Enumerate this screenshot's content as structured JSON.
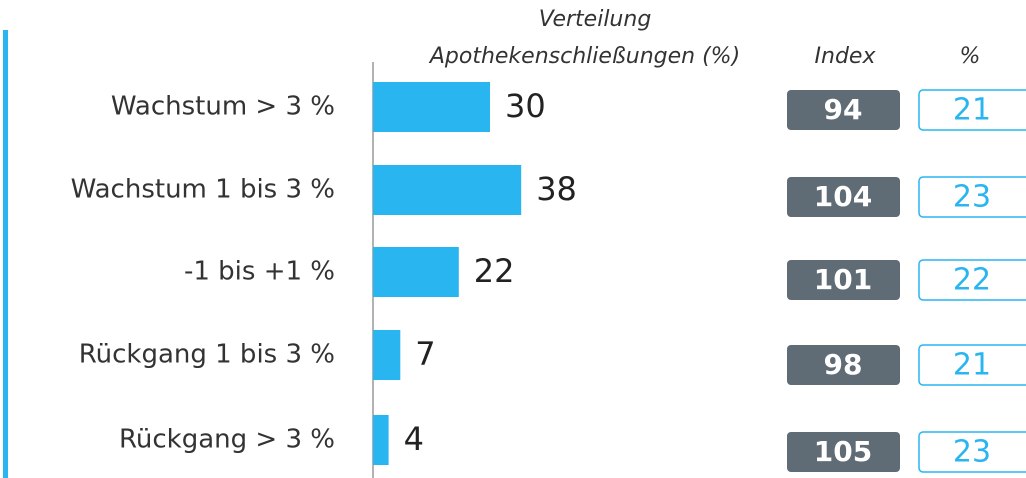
{
  "chart_data": {
    "type": "bar",
    "orientation": "horizontal",
    "title_lines": [
      "Verteilung",
      "Apothekenschließungen (%)"
    ],
    "categories": [
      "Wachstum > 3 %",
      "Wachstum 1 bis 3 %",
      "-1 bis +1 %",
      "Rückgang 1 bis 3 %",
      "Rückgang > 3 %"
    ],
    "values": [
      30,
      38,
      22,
      7,
      4
    ],
    "color": "#29b5f0",
    "index_header": "Index",
    "index_values": [
      94,
      104,
      101,
      98,
      105
    ],
    "index_color": "#5f6b75",
    "share_header": "%",
    "share_values": [
      21,
      23,
      22,
      21,
      23
    ]
  }
}
